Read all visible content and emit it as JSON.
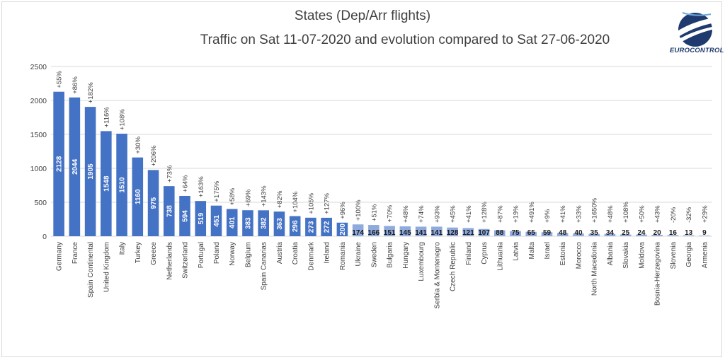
{
  "title": "States (Dep/Arr flights)",
  "subtitle": "Traffic on Sat 11-07-2020 and evolution compared to Sat 27-06-2020",
  "logo_text": "EUROCONTROL",
  "colors": {
    "bar_dark": "#4472c4",
    "bar_light": "#8faadc",
    "grid": "#d9d9d9"
  },
  "chart_data": {
    "type": "bar",
    "title": "States (Dep/Arr flights)",
    "subtitle": "Traffic on Sat 11-07-2020 and evolution compared to Sat 27-06-2020",
    "ylim": [
      0,
      2500
    ],
    "yticks": [
      0,
      500,
      1000,
      1500,
      2000,
      2500
    ],
    "grid": true,
    "categories": [
      "Germany",
      "France",
      "Spain Continental",
      "United Kingdom",
      "Italy",
      "Turkey",
      "Greece",
      "Netherlands",
      "Switzerland",
      "Portugal",
      "Poland",
      "Norway",
      "Belgium",
      "Spain Canarias",
      "Austria",
      "Croatia",
      "Denmark",
      "Ireland",
      "Romania",
      "Ukraine",
      "Sweden",
      "Bulgaria",
      "Hungary",
      "Luxembourg",
      "Serbia & Montenegro",
      "Czech Republic",
      "Finland",
      "Cyprus",
      "Lithuania",
      "Latvia",
      "Malta",
      "Israel",
      "Estonia",
      "Morocco",
      "North Macedonia",
      "Albania",
      "Slovakia",
      "Moldova",
      "Bosnia-Herzegovina",
      "Slovenia",
      "Georgia",
      "Armenia"
    ],
    "values": [
      2128,
      2044,
      1905,
      1548,
      1510,
      1160,
      975,
      738,
      594,
      519,
      451,
      401,
      383,
      382,
      363,
      296,
      273,
      272,
      200,
      174,
      166,
      151,
      145,
      141,
      141,
      128,
      121,
      107,
      88,
      75,
      65,
      59,
      48,
      40,
      35,
      34,
      25,
      24,
      20,
      16,
      13,
      9
    ],
    "value_labels": [
      "2128",
      "2044",
      "1905",
      "1548",
      "1510",
      "1160",
      "975",
      "738",
      "594",
      "519",
      "451",
      "401",
      "383",
      "382",
      "363",
      "296",
      "273",
      "272",
      "200",
      "174",
      "166",
      "151",
      "145",
      "141",
      "141",
      "128",
      "121",
      "107",
      "88",
      "75",
      "65",
      "59",
      "48",
      "40",
      "35",
      "34",
      "25",
      "24",
      "20",
      "16",
      "13",
      "9"
    ],
    "evolution": [
      "+55%",
      "+86%",
      "+182%",
      "+116%",
      "+108%",
      "+30%",
      "+206%",
      "+73%",
      "+64%",
      "+163%",
      "+175%",
      "+58%",
      "+69%",
      "+143%",
      "+82%",
      "+104%",
      "+105%",
      "+127%",
      "+96%",
      "+100%",
      "+51%",
      "+70%",
      "+48%",
      "+74%",
      "+93%",
      "+45%",
      "+41%",
      "+128%",
      "+87%",
      "+19%",
      "+491%",
      "+9%",
      "+41%",
      "+33%",
      "+1650%",
      "+48%",
      "+108%",
      "+50%",
      "+43%",
      "-20%",
      "-32%",
      "+29%"
    ]
  }
}
